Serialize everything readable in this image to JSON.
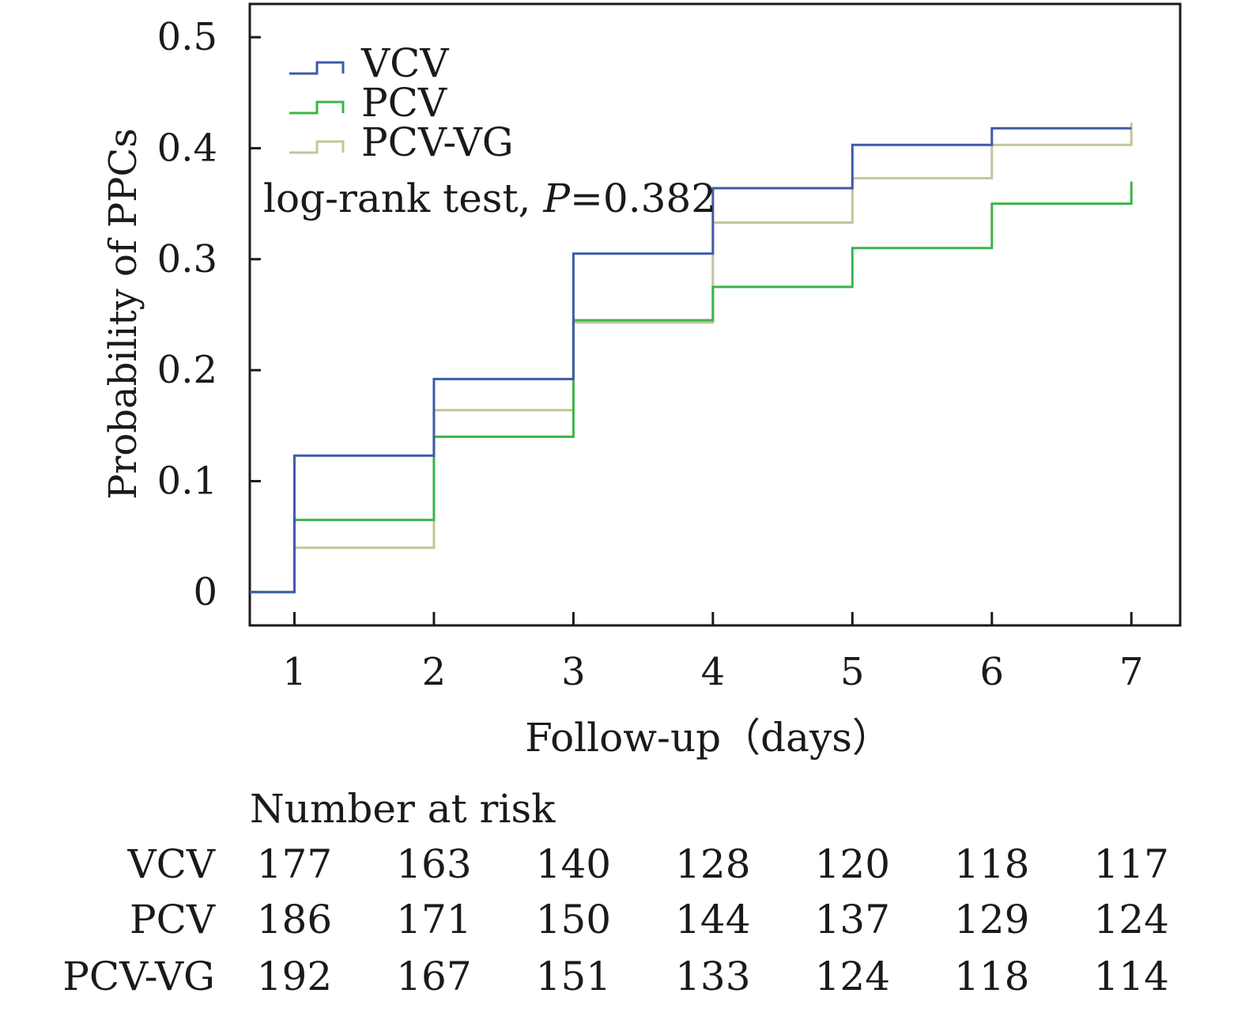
{
  "chart_data": {
    "type": "line",
    "subtype": "kaplan-meier step",
    "xlabel": "Follow-up（days）",
    "ylabel": "Probability of PPCs",
    "x_ticks": [
      1,
      2,
      3,
      4,
      5,
      6,
      7
    ],
    "y_ticks": [
      "0",
      "0.1",
      "0.2",
      "0.3",
      "0.4",
      "0.5"
    ],
    "xlim": [
      0.68,
      7.35
    ],
    "ylim": [
      -0.03,
      0.53
    ],
    "legend_position": "top-left",
    "annotation": {
      "prefix": "log-rank test, ",
      "italic": "P",
      "suffix": "=0.382"
    },
    "series": [
      {
        "name": "VCV",
        "color": "#3d5ba9",
        "x": [
          0.68,
          1,
          2,
          3,
          4,
          5,
          6,
          7
        ],
        "y": [
          0,
          0.123,
          0.192,
          0.305,
          0.364,
          0.403,
          0.418,
          0.418
        ]
      },
      {
        "name": "PCV",
        "color": "#3cb44a",
        "x": [
          0.68,
          1,
          2,
          3,
          4,
          5,
          6,
          7
        ],
        "y": [
          0,
          0.065,
          0.14,
          0.245,
          0.275,
          0.31,
          0.35,
          0.37
        ]
      },
      {
        "name": "PCV-VG",
        "color": "#c4c49a",
        "x": [
          0.68,
          1,
          2,
          3,
          4,
          5,
          6,
          7
        ],
        "y": [
          0,
          0.04,
          0.164,
          0.243,
          0.333,
          0.373,
          0.403,
          0.423
        ]
      }
    ],
    "risk_table": {
      "title": "Number at risk",
      "rows": [
        {
          "label": "VCV",
          "values": [
            "177",
            "163",
            "140",
            "128",
            "120",
            "118",
            "117"
          ]
        },
        {
          "label": "PCV",
          "values": [
            "186",
            "171",
            "150",
            "144",
            "137",
            "129",
            "124"
          ]
        },
        {
          "label": "PCV-VG",
          "values": [
            "192",
            "167",
            "151",
            "133",
            "124",
            "118",
            "114"
          ]
        }
      ]
    }
  }
}
